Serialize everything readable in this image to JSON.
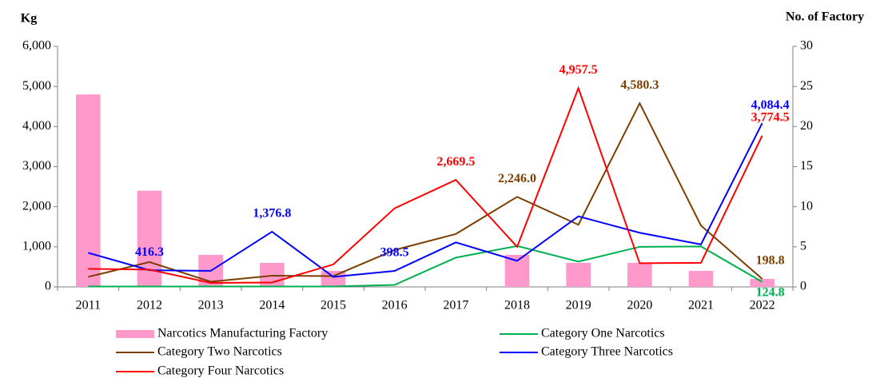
{
  "chart_data": {
    "type": "bar-line",
    "y_label": "Kg",
    "y2_label": "No. of Factory",
    "categories": [
      "2011",
      "2012",
      "2013",
      "2014",
      "2015",
      "2016",
      "2017",
      "2018",
      "2019",
      "2020",
      "2021",
      "2022"
    ],
    "ylim": [
      0,
      6000
    ],
    "yticks": [
      0,
      {
        "value": 1000,
        "label": "1,000"
      },
      {
        "value": 2000,
        "label": "2,000"
      },
      {
        "value": 3000,
        "label": "3,000"
      },
      {
        "value": 4000,
        "label": "4,000"
      },
      {
        "value": 5000,
        "label": "5,000"
      },
      {
        "value": 6000,
        "label": "6,000"
      }
    ],
    "y2lim": [
      0,
      30
    ],
    "y2ticks": [
      0,
      5,
      10,
      15,
      20,
      25,
      30
    ],
    "series": [
      {
        "name": "Narcotics Manufacturing Factory",
        "type": "bar",
        "axis": "y2",
        "color": "#ff99cc",
        "values": [
          24,
          12,
          4,
          3,
          2,
          0,
          0,
          4,
          3,
          3,
          2,
          1
        ]
      },
      {
        "name": "Category One Narcotics",
        "type": "line",
        "color": "#00b050",
        "values": [
          10,
          10,
          10,
          10,
          10,
          50,
          730,
          1020,
          630,
          1000,
          1010,
          124.8
        ],
        "value_labels": [
          null,
          null,
          null,
          null,
          null,
          null,
          null,
          null,
          null,
          null,
          null,
          "124.8"
        ]
      },
      {
        "name": "Category Two Narcotics",
        "type": "line",
        "color": "#7b3f00",
        "values": [
          250,
          620,
          130,
          280,
          270,
          920,
          1320,
          2246.0,
          1550,
          4580.3,
          1530,
          198.8
        ],
        "value_labels": [
          null,
          null,
          null,
          null,
          null,
          null,
          null,
          "2,246.0",
          null,
          "4,580.3",
          null,
          "198.8"
        ]
      },
      {
        "name": "Category Three Narcotics",
        "type": "line",
        "color": "#0000ff",
        "values": [
          850,
          416.3,
          400,
          1376.8,
          250,
          398.5,
          1110,
          650,
          1760,
          1350,
          1060,
          4084.4
        ],
        "value_labels": [
          null,
          "416.3",
          null,
          "1,376.8",
          null,
          "398.5",
          null,
          null,
          null,
          null,
          null,
          "4,084.4"
        ]
      },
      {
        "name": "Category Four Narcotics",
        "type": "line",
        "color": "#ff0000",
        "values": [
          450,
          430,
          100,
          110,
          560,
          1960,
          2669.5,
          1000,
          4957.5,
          590,
          600,
          3774.5
        ],
        "value_labels": [
          null,
          null,
          null,
          null,
          null,
          null,
          "2,669.5",
          null,
          "4,957.5",
          null,
          null,
          "3,774.5"
        ]
      }
    ]
  }
}
